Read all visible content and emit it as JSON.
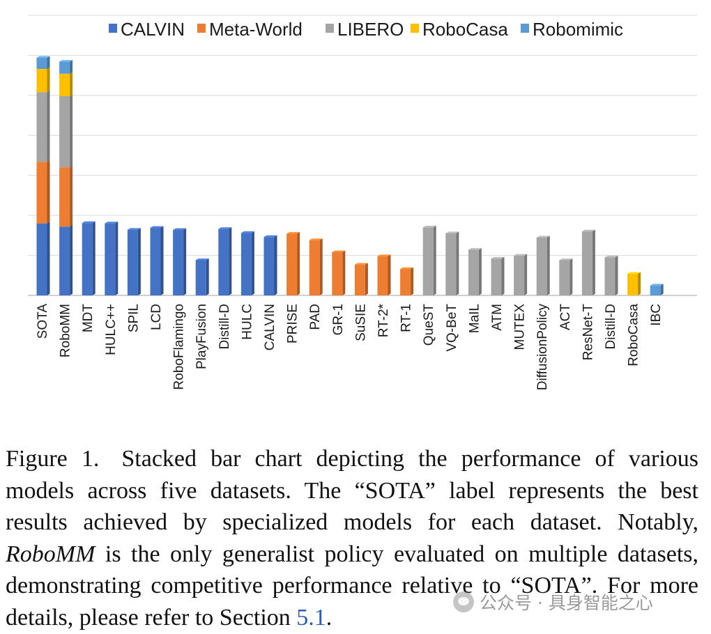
{
  "chart_data": {
    "type": "bar",
    "stacked": true,
    "categories": [
      "SOTA",
      "RoboMM",
      "MDT",
      "HULC++",
      "SPIL",
      "LCD",
      "RoboFlamingo",
      "PlayFusion",
      "Distill-D",
      "HULC",
      "CALVIN",
      "PRISE",
      "PAD",
      "GR-1",
      "SuSIE",
      "RT-2*",
      "RT-1",
      "QueST",
      "VQ-BeT",
      "MaIL",
      "ATM",
      "MUTEX",
      "DiffusionPolicy",
      "ACT",
      "ResNet-T",
      "Distill-D",
      "RoboCasa",
      "IBC"
    ],
    "series": [
      {
        "name": "CALVIN",
        "color": "#4472C4",
        "values": [
          4.5,
          4.3,
          4.52,
          4.5,
          4.1,
          4.22,
          4.09,
          2.2,
          4.15,
          3.9,
          3.65,
          0,
          0,
          0,
          0,
          0,
          0,
          0,
          0,
          0,
          0,
          0,
          0,
          0,
          0,
          0,
          0,
          0
        ]
      },
      {
        "name": "Meta-World",
        "color": "#ED7D31",
        "values": [
          3.85,
          3.7,
          0,
          0,
          0,
          0,
          0,
          0,
          0,
          0,
          0,
          3.85,
          3.45,
          2.7,
          1.92,
          2.45,
          1.65,
          0,
          0,
          0,
          0,
          0,
          0,
          0,
          0,
          0,
          0,
          0
        ]
      },
      {
        "name": "LIBERO",
        "color": "#A5A5A5",
        "values": [
          4.35,
          4.45,
          0,
          0,
          0,
          0,
          0,
          0,
          0,
          0,
          0,
          0,
          0,
          0,
          0,
          0,
          0,
          4.25,
          3.88,
          2.85,
          2.3,
          2.48,
          3.62,
          2.2,
          4.0,
          2.38,
          0,
          0
        ]
      },
      {
        "name": "RoboCasa",
        "color": "#FFC000",
        "values": [
          1.45,
          1.4,
          0,
          0,
          0,
          0,
          0,
          0,
          0,
          0,
          0,
          0,
          0,
          0,
          0,
          0,
          0,
          0,
          0,
          0,
          0,
          0,
          0,
          0,
          0,
          0,
          1.35,
          0
        ]
      },
      {
        "name": "Robomimic",
        "color": "#5B9BD5",
        "values": [
          0.7,
          0.75,
          0,
          0,
          0,
          0,
          0,
          0,
          0,
          0,
          0,
          0,
          0,
          0,
          0,
          0,
          0,
          0,
          0,
          0,
          0,
          0,
          0,
          0,
          0,
          0,
          0,
          0.62
        ]
      }
    ],
    "ylim": [
      0,
      17.5
    ],
    "y_gridlines": [
      0,
      2.5,
      5,
      7.5,
      10,
      12.5,
      15,
      17.5
    ],
    "y_tick_labels_visible": false,
    "grid": true,
    "legend_position": "top",
    "title": "",
    "xlabel": "",
    "ylabel": ""
  },
  "caption": {
    "figure_label": "Figure 1.",
    "part1": "Stacked bar chart depicting the performance of vari­ous models across five datasets. The “SOTA” label represents the best results achieved by specialized models for each dataset. No­tably,",
    "model_name": "RoboMM",
    "part2": "is the only generalist policy evaluated on mul­tiple datasets, demonstrating competitive performance relative to “SOTA”. For more details, please refer to Section",
    "section_ref": "5.1",
    "end": "."
  },
  "watermark": {
    "text": "公众号 · 具身智能之心",
    "icon": "wechat-logo-icon"
  }
}
